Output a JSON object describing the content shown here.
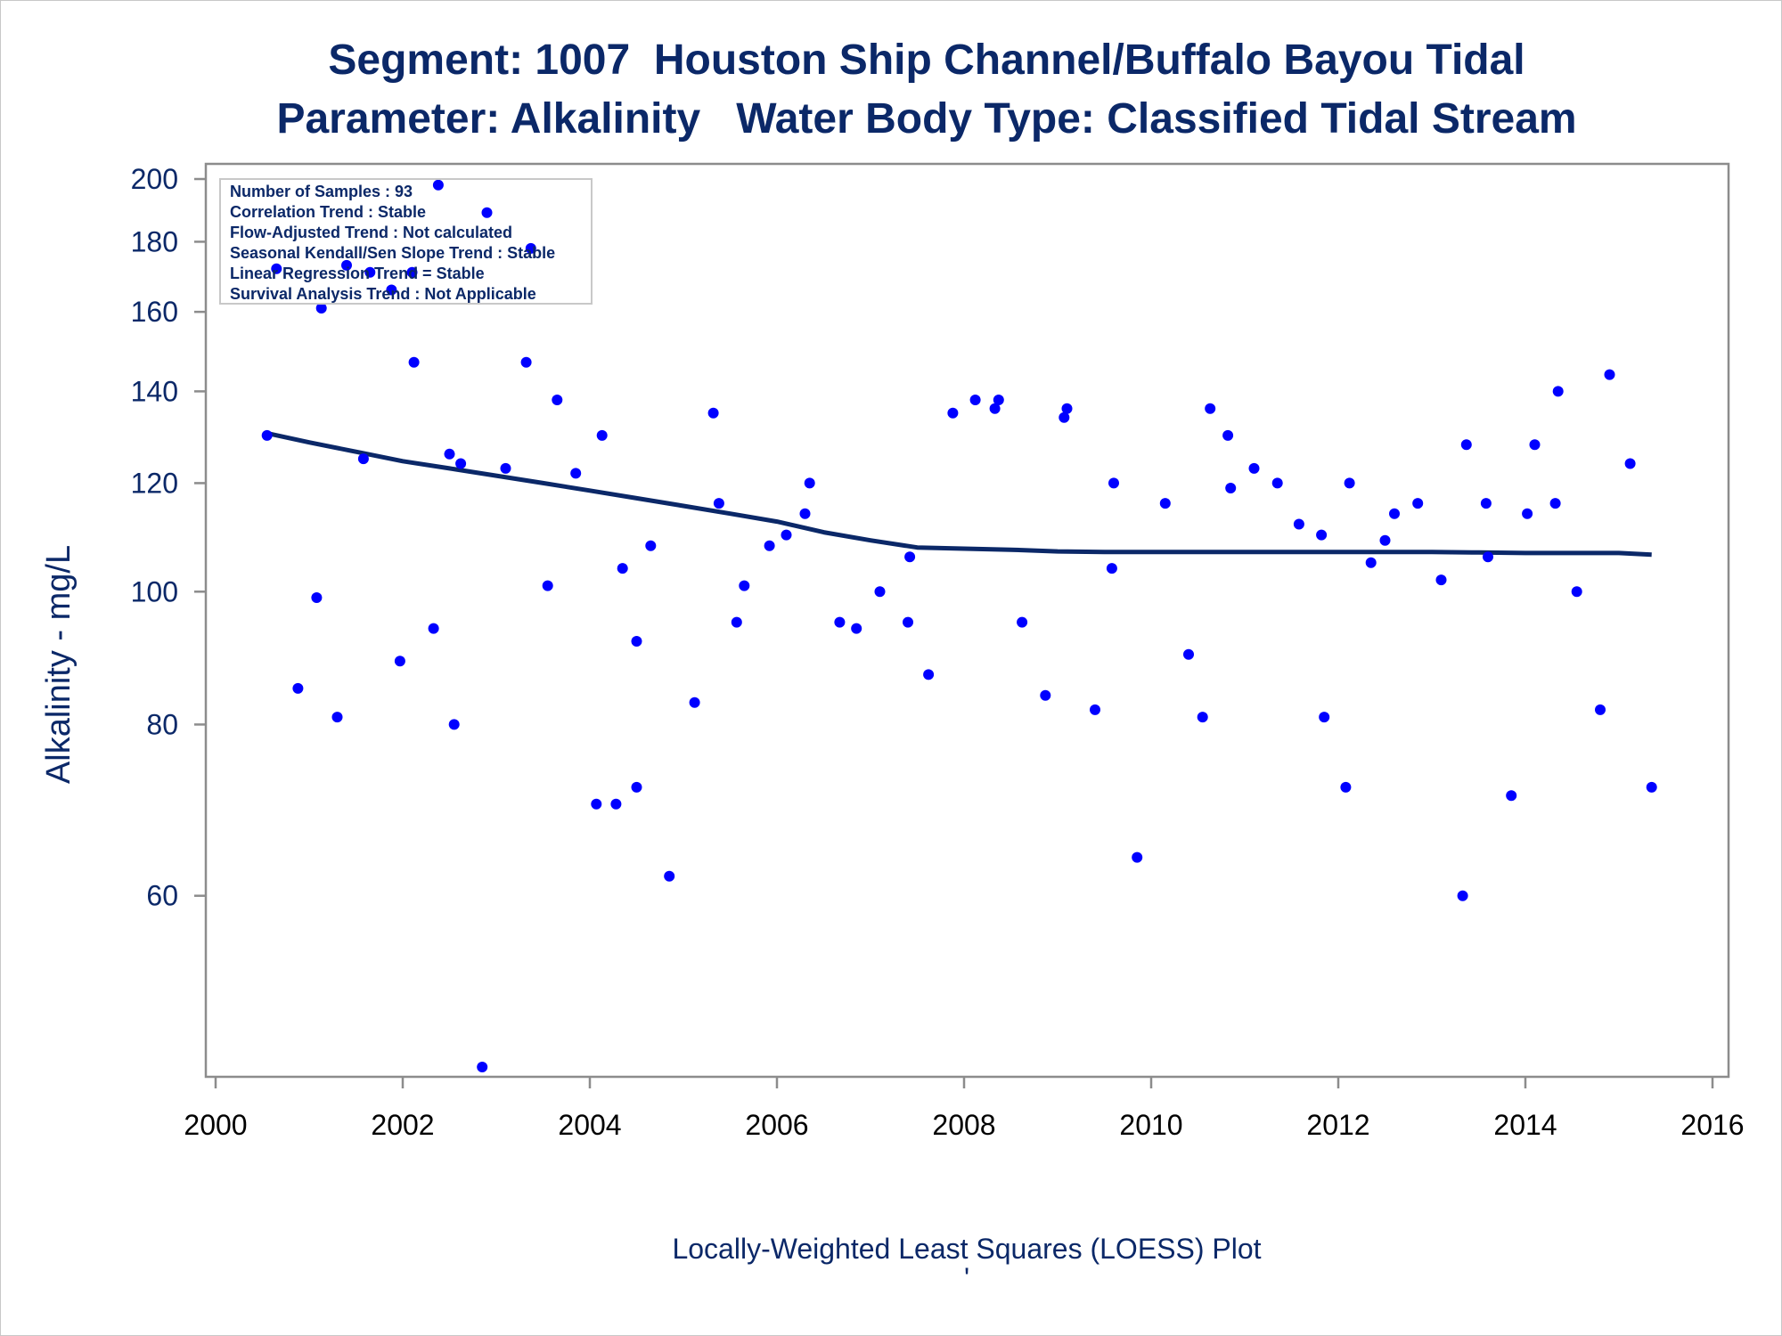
{
  "chart_data": {
    "type": "scatter",
    "title": "Segment: 1007  Houston Ship Channel/Buffalo Bayou Tidal",
    "subtitle": "Parameter: Alkalinity   Water Body Type: Classified Tidal Stream",
    "xlabel": "",
    "ylabel": "Alkalinity - mg/L",
    "footnote": "Locally-Weighted Least Squares (LOESS) Plot",
    "footnote_mark": "'",
    "xlim": [
      2000,
      2016
    ],
    "ylim": [
      45,
      200
    ],
    "y_scale": "log",
    "x_ticks": [
      "2000",
      "2002",
      "2004",
      "2006",
      "2008",
      "2010",
      "2012",
      "2014",
      "2016"
    ],
    "y_ticks": [
      "60",
      "80",
      "100",
      "120",
      "140",
      "160",
      "180",
      "200"
    ],
    "grid": false,
    "legend_position": "top-left",
    "legend_lines": [
      "Number of Samples : 93",
      "Correlation Trend : Stable",
      "Flow-Adjusted Trend : Not calculated",
      "Seasonal Kendall/Sen Slope Trend : Stable",
      "Linear Regression Trend = Stable",
      "Survival Analysis Trend : Not Applicable"
    ],
    "colors": {
      "points": "#0000ff",
      "loess": "#0b2868",
      "text": "#0b2868",
      "axis": "#8c8c8c"
    },
    "series": [
      {
        "kind": "points",
        "x": [
          2000.55,
          2000.65,
          2000.88,
          2001.08,
          2001.13,
          2001.3,
          2001.4,
          2001.58,
          2001.65,
          2001.88,
          2001.97,
          2002.1,
          2002.12,
          2002.33,
          2002.38,
          2002.5,
          2002.55,
          2002.62,
          2002.85,
          2002.9,
          2003.1,
          2003.32,
          2003.37,
          2003.55,
          2003.65,
          2003.85,
          2004.07,
          2004.13,
          2004.28,
          2004.35,
          2004.5,
          2004.5,
          2004.65,
          2004.85,
          2005.12,
          2005.32,
          2005.38,
          2005.57,
          2005.65,
          2005.92,
          2006.1,
          2006.3,
          2006.35,
          2006.67,
          2006.85,
          2007.1,
          2007.4,
          2007.42,
          2007.62,
          2007.88,
          2008.12,
          2008.33,
          2008.37,
          2008.62,
          2008.87,
          2009.07,
          2009.1,
          2009.4,
          2009.58,
          2009.6,
          2009.85,
          2010.15,
          2010.4,
          2010.55,
          2010.63,
          2010.82,
          2010.85,
          2011.1,
          2011.35,
          2011.58,
          2011.82,
          2011.85,
          2012.08,
          2012.12,
          2012.35,
          2012.5,
          2012.6,
          2012.85,
          2013.1,
          2013.33,
          2013.37,
          2013.58,
          2013.6,
          2013.85,
          2014.02,
          2014.1,
          2014.32,
          2014.35,
          2014.55,
          2014.8,
          2014.9,
          2015.12,
          2015.35
        ],
        "y": [
          130,
          172,
          85,
          99,
          161,
          81,
          173,
          125,
          171,
          166,
          89,
          171,
          147,
          94,
          198,
          126,
          80,
          124,
          45,
          189,
          123,
          147,
          178,
          101,
          138,
          122,
          70,
          130,
          70,
          104,
          92,
          72,
          108,
          62,
          83,
          135,
          116,
          95,
          101,
          108,
          110,
          114,
          120,
          95,
          94,
          100,
          95,
          106,
          87,
          135,
          138,
          136,
          138,
          95,
          84,
          134,
          136,
          82,
          104,
          120,
          64,
          116,
          90,
          81,
          136,
          130,
          119,
          123,
          120,
          112,
          110,
          81,
          72,
          120,
          105,
          109,
          114,
          116,
          102,
          60,
          128,
          116,
          106,
          71,
          114,
          128,
          116,
          140,
          100,
          82,
          144,
          124,
          72
        ]
      },
      {
        "kind": "loess",
        "x": [
          2000.55,
          2001,
          2001.5,
          2002,
          2002.5,
          2003,
          2003.5,
          2004,
          2004.5,
          2005,
          2005.5,
          2006,
          2006.5,
          2007,
          2007.5,
          2008,
          2008.5,
          2009,
          2009.5,
          2010,
          2010.5,
          2011,
          2011.5,
          2012,
          2012.5,
          2013,
          2013.5,
          2014,
          2014.5,
          2015,
          2015.35
        ],
        "y": [
          130.5,
          128.5,
          126.5,
          124.5,
          123,
          121.5,
          120,
          118.5,
          117,
          115.5,
          114,
          112.5,
          110.5,
          109,
          107.7,
          107.5,
          107.3,
          107,
          106.9,
          106.9,
          106.9,
          106.9,
          106.9,
          106.9,
          106.9,
          106.9,
          106.8,
          106.7,
          106.7,
          106.7,
          106.4
        ]
      }
    ]
  }
}
